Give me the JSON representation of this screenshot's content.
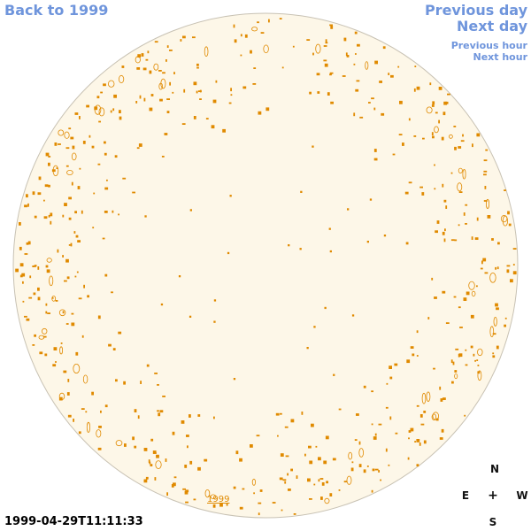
{
  "nav": {
    "back_label": "Back to 1999",
    "previous_day_label": "Previous day",
    "next_day_label": "Next day",
    "previous_hour_label": "Previous hour",
    "next_hour_label": "Next hour"
  },
  "compass": {
    "north": "N",
    "east": "E",
    "center": "+",
    "west": "W",
    "south": "S"
  },
  "footer": {
    "timestamp": "1999-04-29T11:11:33"
  },
  "disk": {
    "year_label": "1999"
  },
  "colors": {
    "link": "#6f95dc",
    "disk_fill": "#fdf7e8",
    "disk_border": "#c8c2b4",
    "feature": "#e08a00"
  }
}
